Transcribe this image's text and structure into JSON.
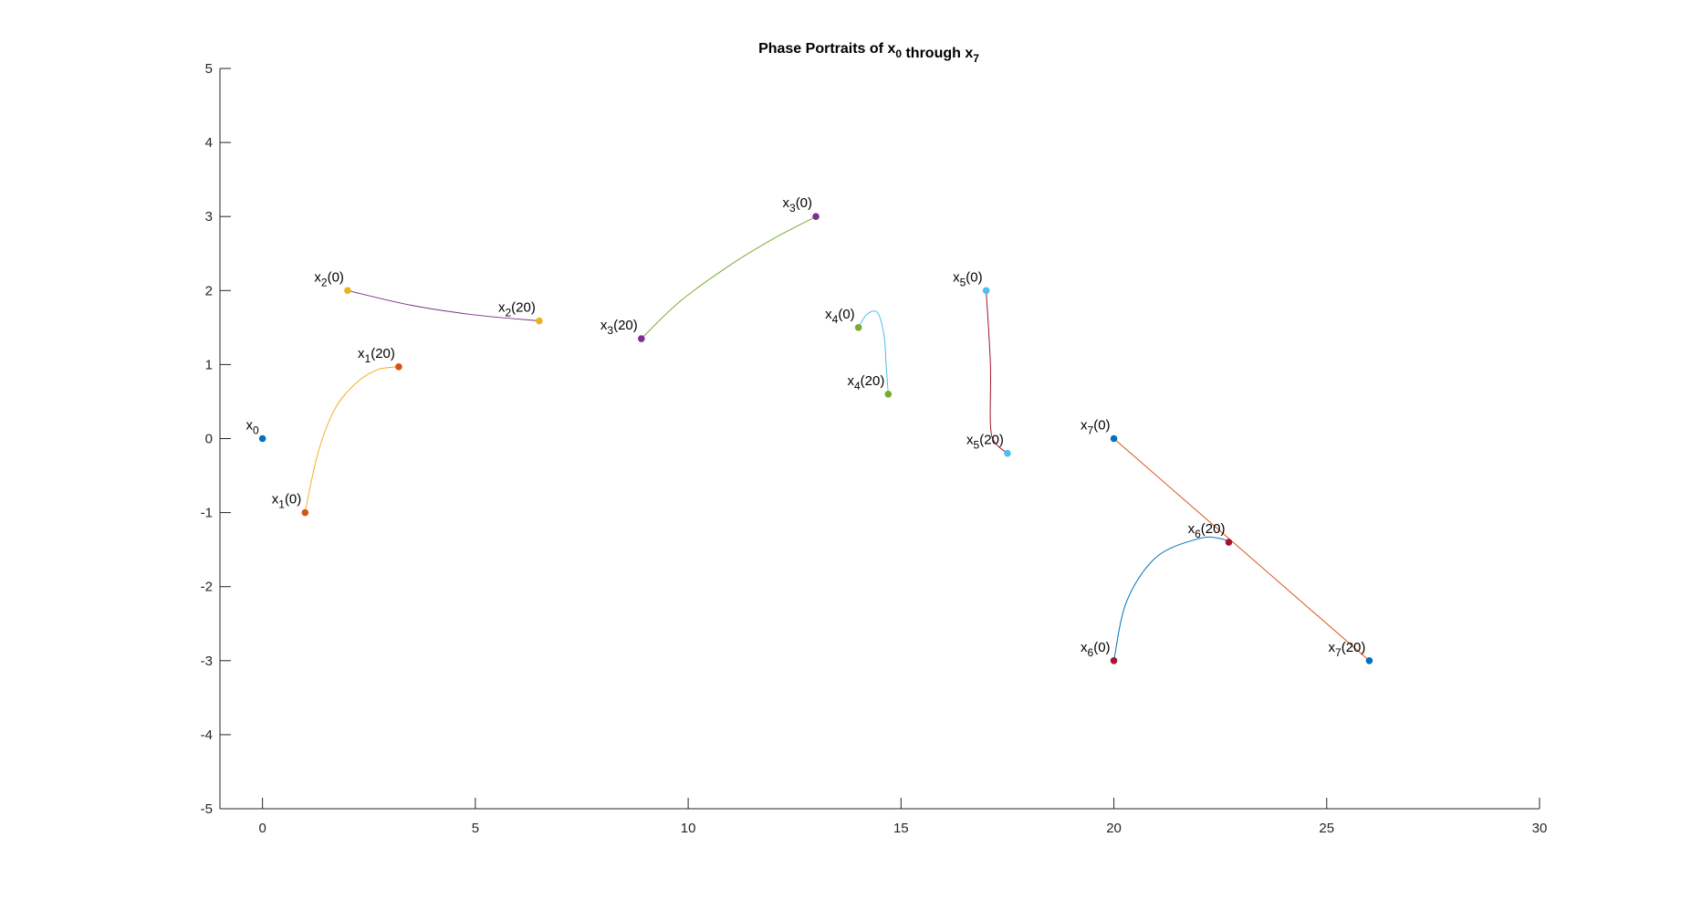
{
  "chart_data": {
    "type": "line",
    "title": "Phase Portraits of x",
    "title_parts": [
      {
        "text": "Phase Portraits of x",
        "sub": "0"
      },
      {
        "text": " through x",
        "sub": "7"
      }
    ],
    "xlabel": "",
    "ylabel": "",
    "xlim": [
      -1,
      30
    ],
    "ylim": [
      -5,
      5
    ],
    "xticks": [
      0,
      5,
      10,
      15,
      20,
      25,
      30
    ],
    "yticks": [
      -5,
      -4,
      -3,
      -2,
      -1,
      0,
      1,
      2,
      3,
      4,
      5
    ],
    "grid": false,
    "legend": "none",
    "series": [
      {
        "color": "#EDB120",
        "values": [
          [
            1,
            -1
          ],
          [
            1.3,
            -0.2
          ],
          [
            1.7,
            0.4
          ],
          [
            2.2,
            0.75
          ],
          [
            2.7,
            0.93
          ],
          [
            3.2,
            0.97
          ]
        ]
      },
      {
        "color": "#7E2F8E",
        "values": [
          [
            2,
            2
          ],
          [
            3.5,
            1.8
          ],
          [
            5,
            1.67
          ],
          [
            6.5,
            1.59
          ]
        ]
      },
      {
        "color": "#77AC30",
        "values": [
          [
            8.9,
            1.35
          ],
          [
            9.8,
            1.85
          ],
          [
            11,
            2.35
          ],
          [
            12,
            2.7
          ],
          [
            13,
            3
          ]
        ]
      },
      {
        "color": "#4DBEEE",
        "values": [
          [
            14,
            1.5
          ],
          [
            14.2,
            1.68
          ],
          [
            14.45,
            1.7
          ],
          [
            14.6,
            1.4
          ],
          [
            14.65,
            1.0
          ],
          [
            14.7,
            0.6
          ]
        ]
      },
      {
        "color": "#A2142F",
        "values": [
          [
            17,
            2
          ],
          [
            17.1,
            1.0
          ],
          [
            17.1,
            0.2
          ],
          [
            17.2,
            -0.05
          ],
          [
            17.5,
            -0.2
          ]
        ]
      },
      {
        "color": "#0072BD",
        "values": [
          [
            20,
            -3
          ],
          [
            20.3,
            -2.2
          ],
          [
            21,
            -1.6
          ],
          [
            22,
            -1.35
          ],
          [
            22.5,
            -1.35
          ],
          [
            22.7,
            -1.4
          ]
        ]
      },
      {
        "color": "#D95319",
        "values": [
          [
            20,
            0
          ],
          [
            23,
            -1.5
          ],
          [
            26,
            -3
          ]
        ]
      }
    ],
    "points": [
      {
        "name": "x0",
        "label_base": "x",
        "label_sub": "0",
        "label_rest": "",
        "x": 0,
        "y": 0,
        "color": "#0072BD"
      },
      {
        "name": "x1-start",
        "label_base": "x",
        "label_sub": "1",
        "label_rest": "(0)",
        "x": 1,
        "y": -1,
        "color": "#D95319"
      },
      {
        "name": "x1-end",
        "label_base": "x",
        "label_sub": "1",
        "label_rest": "(20)",
        "x": 3.2,
        "y": 0.97,
        "color": "#D95319"
      },
      {
        "name": "x2-start",
        "label_base": "x",
        "label_sub": "2",
        "label_rest": "(0)",
        "x": 2,
        "y": 2,
        "color": "#EDB120"
      },
      {
        "name": "x2-end",
        "label_base": "x",
        "label_sub": "2",
        "label_rest": "(20)",
        "x": 6.5,
        "y": 1.59,
        "color": "#EDB120"
      },
      {
        "name": "x3-start",
        "label_base": "x",
        "label_sub": "3",
        "label_rest": "(0)",
        "x": 13,
        "y": 3,
        "color": "#7E2F8E"
      },
      {
        "name": "x3-end",
        "label_base": "x",
        "label_sub": "3",
        "label_rest": "(20)",
        "x": 8.9,
        "y": 1.35,
        "color": "#7E2F8E"
      },
      {
        "name": "x4-start",
        "label_base": "x",
        "label_sub": "4",
        "label_rest": "(0)",
        "x": 14,
        "y": 1.5,
        "color": "#77AC30"
      },
      {
        "name": "x4-end",
        "label_base": "x",
        "label_sub": "4",
        "label_rest": "(20)",
        "x": 14.7,
        "y": 0.6,
        "color": "#77AC30"
      },
      {
        "name": "x5-start",
        "label_base": "x",
        "label_sub": "5",
        "label_rest": "(0)",
        "x": 17,
        "y": 2,
        "color": "#4DBEEE"
      },
      {
        "name": "x5-end",
        "label_base": "x",
        "label_sub": "5",
        "label_rest": "(20)",
        "x": 17.5,
        "y": -0.2,
        "color": "#4DBEEE"
      },
      {
        "name": "x6-start",
        "label_base": "x",
        "label_sub": "6",
        "label_rest": "(0)",
        "x": 20,
        "y": -3,
        "color": "#A2142F"
      },
      {
        "name": "x6-end",
        "label_base": "x",
        "label_sub": "6",
        "label_rest": "(20)",
        "x": 22.7,
        "y": -1.4,
        "color": "#A2142F"
      },
      {
        "name": "x7-start",
        "label_base": "x",
        "label_sub": "7",
        "label_rest": "(0)",
        "x": 20,
        "y": 0,
        "color": "#0072BD"
      },
      {
        "name": "x7-end",
        "label_base": "x",
        "label_sub": "7",
        "label_rest": "(20)",
        "x": 26,
        "y": -3,
        "color": "#0072BD"
      }
    ]
  }
}
